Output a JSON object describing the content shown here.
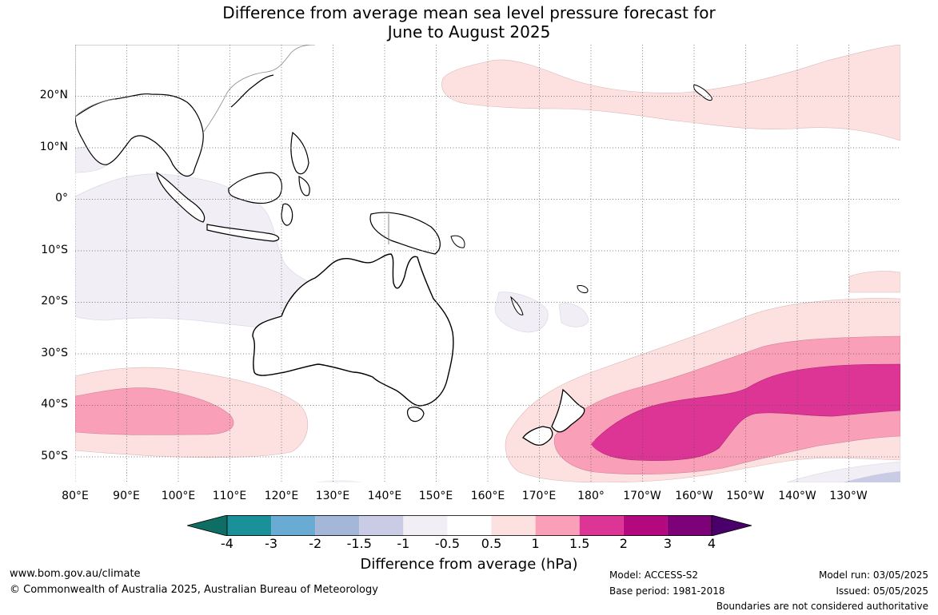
{
  "title_line1": "Difference from average mean sea level pressure forecast for",
  "title_line2": "June to August 2025",
  "lat_labels": [
    "20°N",
    "10°N",
    "0°",
    "10°S",
    "20°S",
    "30°S",
    "40°S",
    "50°S"
  ],
  "lon_labels": [
    "80°E",
    "90°E",
    "100°E",
    "110°E",
    "120°E",
    "130°E",
    "140°E",
    "150°E",
    "160°E",
    "170°E",
    "180°",
    "170°W",
    "160°W",
    "150°W",
    "140°W",
    "130°W"
  ],
  "colorbar": {
    "label": "Difference from average (hPa)",
    "ticks": [
      "-4",
      "-3",
      "-2",
      "-1.5",
      "-1",
      "-0.5",
      "0.5",
      "1",
      "1.5",
      "2",
      "3",
      "4"
    ],
    "colors": [
      "#0e6e63",
      "#1a9098",
      "#6aabd3",
      "#a4b7d8",
      "#c9cce4",
      "#f1eef6",
      "#ffffff",
      "#fde0e0",
      "#f9a0b8",
      "#dd3596",
      "#b3087e",
      "#7e0277",
      "#4a006a"
    ]
  },
  "footer": {
    "website": "www.bom.gov.au/climate",
    "copyright": "© Commonwealth of Australia 2025, Australian Bureau of Meteorology",
    "model": "Model: ACCESS-S2",
    "base_period": "Base period: 1981-2018",
    "model_run": "Model run: 03/05/2025",
    "issued": "Issued: 05/05/2025",
    "disclaimer": "Boundaries are not considered authoritative"
  }
}
